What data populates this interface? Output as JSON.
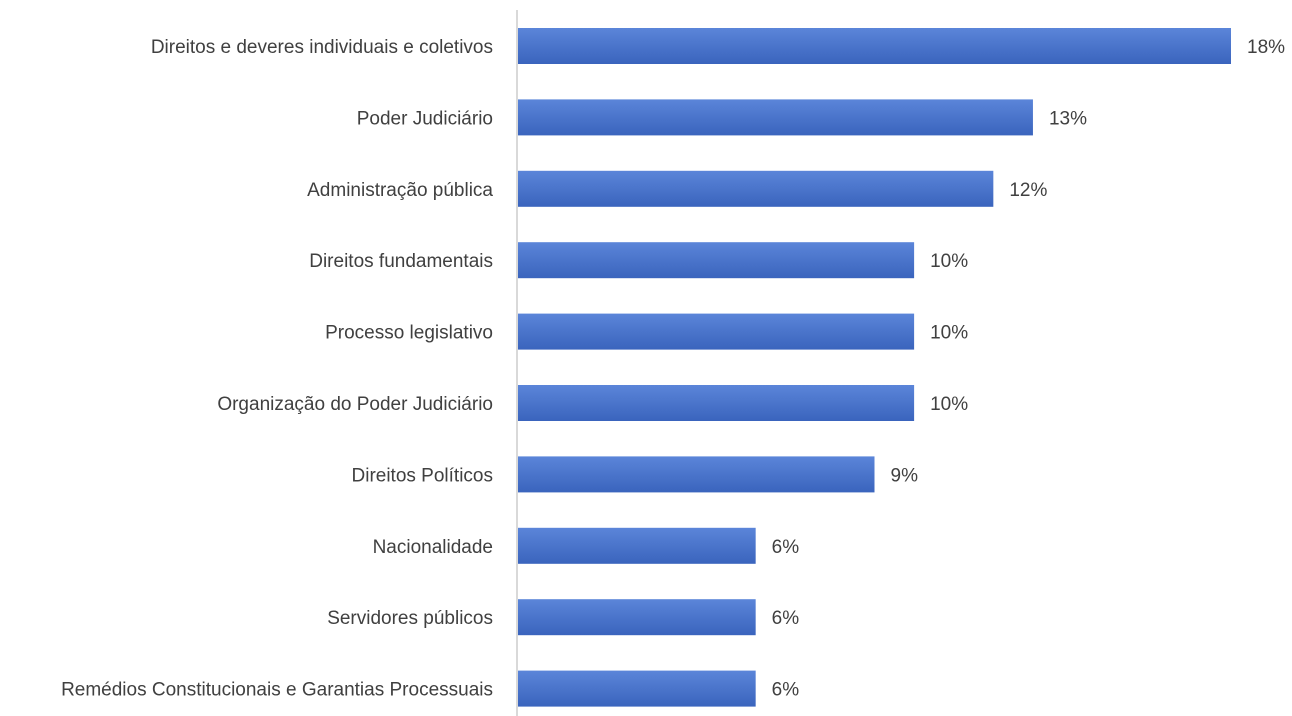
{
  "chart_data": {
    "type": "bar",
    "orientation": "horizontal",
    "categories": [
      "Direitos e deveres individuais e coletivos",
      "Poder Judiciário",
      "Administração pública",
      "Direitos fundamentais",
      "Processo legislativo",
      "Organização do Poder Judiciário",
      "Direitos Políticos",
      "Nacionalidade",
      "Servidores públicos",
      "Remédios Constitucionais e Garantias Processuais"
    ],
    "values": [
      18,
      13,
      12,
      10,
      10,
      10,
      9,
      6,
      6,
      6
    ],
    "value_labels": [
      "18%",
      "13%",
      "12%",
      "10%",
      "10%",
      "10%",
      "9%",
      "6%",
      "6%",
      "6%"
    ],
    "unit": "%",
    "title": "",
    "xlabel": "",
    "ylabel": "",
    "grid": false,
    "legend": "none",
    "bar_color_top": "#5b85d9",
    "bar_color_bottom": "#3a64bd",
    "axis_color": "#d9d9d9",
    "text_color": "#404040"
  }
}
